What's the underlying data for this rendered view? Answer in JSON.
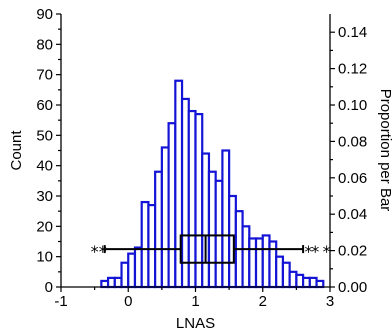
{
  "chart_data": {
    "type": "bar",
    "title": "",
    "xlabel": "LNAS",
    "ylabel": "Count",
    "y2label": "Proportion per Bar",
    "xlim": [
      -1,
      3
    ],
    "ylim": [
      0,
      90
    ],
    "y2lim": [
      0,
      0.15
    ],
    "x_ticks": [
      "-1",
      "0",
      "1",
      "2",
      "3"
    ],
    "y_ticks": [
      "0",
      "10",
      "20",
      "30",
      "40",
      "50",
      "60",
      "70",
      "80",
      "90"
    ],
    "y2_ticks": [
      "0.00",
      "0.02",
      "0.04",
      "0.06",
      "0.08",
      "0.10",
      "0.12",
      "0.14"
    ],
    "bin_width": 0.1,
    "bin_starts": [
      -0.4,
      -0.3,
      -0.2,
      -0.1,
      0.0,
      0.1,
      0.2,
      0.3,
      0.4,
      0.5,
      0.6,
      0.7,
      0.8,
      0.9,
      1.0,
      1.1,
      1.2,
      1.3,
      1.4,
      1.5,
      1.6,
      1.7,
      1.8,
      1.9,
      2.0,
      2.1,
      2.2,
      2.3,
      2.4,
      2.5,
      2.6,
      2.7,
      2.8
    ],
    "values": [
      2,
      3,
      3,
      8,
      11,
      13,
      28,
      27,
      38,
      46,
      54,
      68,
      62,
      58,
      57,
      44,
      38,
      35,
      45,
      30,
      25,
      20,
      16,
      16,
      17,
      15,
      10,
      8,
      5,
      4,
      3,
      3,
      2
    ],
    "boxplot": {
      "whisker_low": -0.35,
      "q1": 0.78,
      "median": 1.15,
      "q3": 1.57,
      "whisker_high": 2.6,
      "outliers": [
        -0.5,
        -0.38,
        2.68,
        2.78,
        2.95
      ],
      "outlier_symbol": "*"
    },
    "grid": false,
    "colors": {
      "bars": "#1414d6",
      "box": "#000000"
    }
  }
}
